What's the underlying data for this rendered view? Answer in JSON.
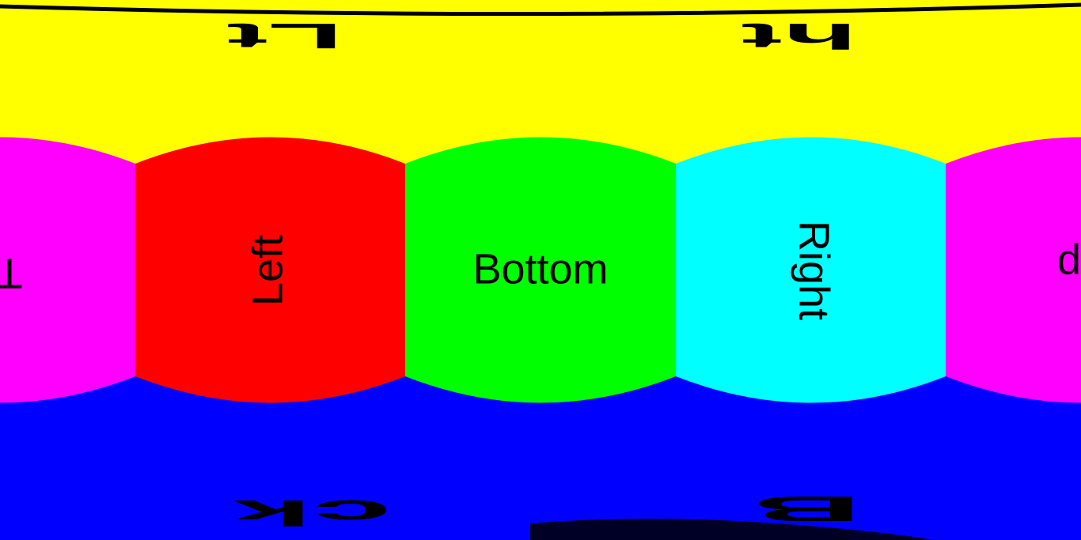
{
  "faces": {
    "top": {
      "color": "#ffff00"
    },
    "bottom_region": {
      "color": "#0000ff"
    },
    "left": {
      "label": "Left",
      "color": "#ff0000"
    },
    "bottom": {
      "label": "Bottom",
      "color": "#00ff00"
    },
    "right": {
      "label": "Right",
      "color": "#00ffff"
    },
    "wrap": {
      "label_a": "To",
      "label_b": "do",
      "color": "#ff00ff"
    }
  },
  "distorted_text": {
    "top_left": "Lt",
    "top_right": "ht",
    "bottom_left": "ck",
    "bottom_right": "B"
  },
  "line_color": "#000000"
}
